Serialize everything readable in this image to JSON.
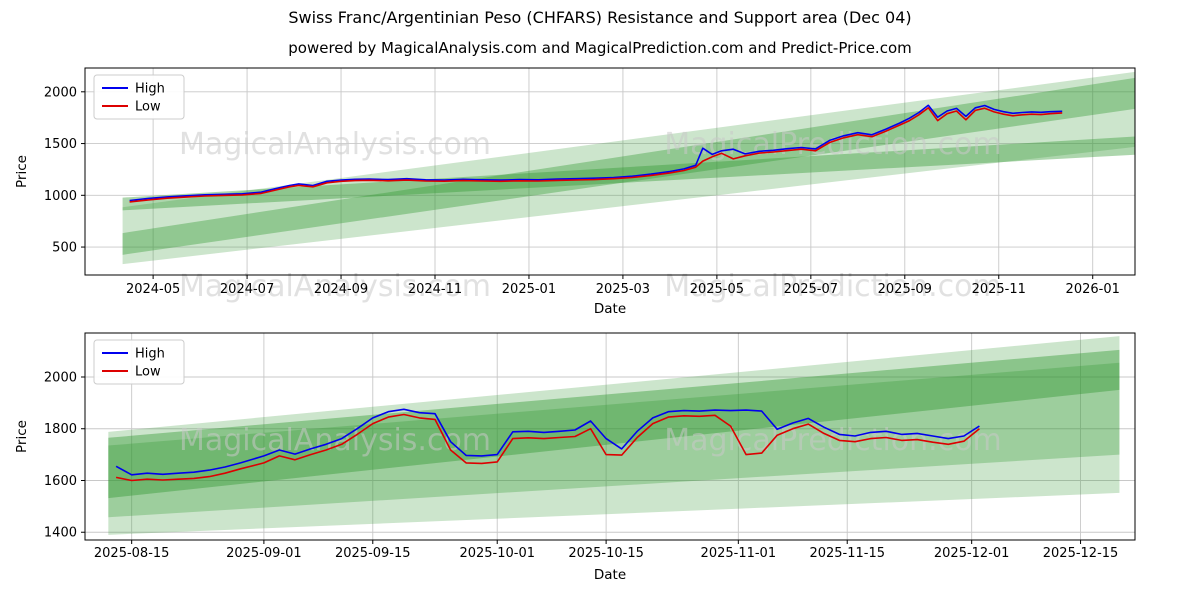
{
  "figure": {
    "title": "Swiss Franc/Argentinian Peso (CHFARS) Resistance and Support area (Dec 04)",
    "subtitle": "powered by MagicalAnalysis.com and MagicalPrediction.com and Predict-Price.com"
  },
  "watermarks": {
    "left": "MagicalAnalysis.com",
    "right": "MagicalPrediction.com"
  },
  "colors": {
    "high": "#0000ee",
    "low": "#dd0000",
    "band": "#339933",
    "grid": "#c8c8c8",
    "watermark": "#c9c9c9",
    "axis": "#000000"
  },
  "chart_data": [
    {
      "type": "line",
      "title": "",
      "xlabel": "Date",
      "ylabel": "Price",
      "xlim": [
        -0.45,
        21.9
      ],
      "ylim": [
        230,
        2230
      ],
      "yticks": [
        500,
        1000,
        1500,
        2000
      ],
      "xticks": {
        "values": [
          1,
          3,
          5,
          7,
          9,
          11,
          13,
          15,
          17,
          19,
          21
        ],
        "labels": [
          "2024-05",
          "2024-07",
          "2024-09",
          "2024-11",
          "2025-01",
          "2025-03",
          "2025-05",
          "2025-07",
          "2025-09",
          "2025-11",
          "2026-01"
        ]
      },
      "legend": {
        "position": "upper-left",
        "entries": [
          {
            "label": "High",
            "color": "#0000ee"
          },
          {
            "label": "Low",
            "color": "#dd0000"
          }
        ]
      },
      "bands": [
        {
          "x": [
            0.35,
            21.9
          ],
          "lower": [
            335,
            1468
          ],
          "upper": [
            885,
            2192
          ],
          "alpha": 0.25
        },
        {
          "x": [
            0.35,
            21.9
          ],
          "lower": [
            425,
            1835
          ],
          "upper": [
            635,
            2135
          ],
          "alpha": 0.38
        },
        {
          "x": [
            0.35,
            21.9
          ],
          "lower": [
            855,
            1392
          ],
          "upper": [
            978,
            1568
          ],
          "alpha": 0.4
        }
      ],
      "x": [
        0.5,
        0.9,
        1.3,
        1.7,
        2.1,
        2.5,
        2.9,
        3.3,
        3.6,
        3.9,
        4.1,
        4.4,
        4.7,
        5.0,
        5.3,
        5.6,
        6.0,
        6.4,
        6.8,
        7.2,
        7.6,
        8.0,
        8.4,
        8.8,
        9.2,
        9.6,
        10.0,
        10.4,
        10.8,
        11.2,
        11.6,
        12.0,
        12.3,
        12.55,
        12.7,
        12.9,
        13.1,
        13.35,
        13.6,
        13.9,
        14.2,
        14.5,
        14.8,
        15.1,
        15.4,
        15.7,
        16.0,
        16.3,
        16.6,
        16.9,
        17.1,
        17.3,
        17.5,
        17.7,
        17.9,
        18.1,
        18.3,
        18.5,
        18.7,
        18.9,
        19.1,
        19.3,
        19.5,
        19.7,
        19.9,
        20.1,
        20.35
      ],
      "series": [
        {
          "name": "High",
          "color": "#0000ee",
          "values": [
            950,
            970,
            985,
            995,
            1005,
            1010,
            1015,
            1030,
            1065,
            1095,
            1110,
            1095,
            1135,
            1148,
            1155,
            1158,
            1152,
            1160,
            1150,
            1148,
            1155,
            1150,
            1147,
            1152,
            1150,
            1157,
            1160,
            1165,
            1172,
            1185,
            1205,
            1230,
            1255,
            1290,
            1455,
            1395,
            1430,
            1445,
            1400,
            1425,
            1435,
            1450,
            1462,
            1448,
            1530,
            1575,
            1605,
            1585,
            1640,
            1700,
            1745,
            1800,
            1870,
            1755,
            1815,
            1840,
            1762,
            1845,
            1868,
            1830,
            1808,
            1792,
            1800,
            1806,
            1802,
            1808,
            1812
          ]
        },
        {
          "name": "Low",
          "color": "#dd0000",
          "values": [
            936,
            956,
            972,
            983,
            993,
            999,
            1004,
            1018,
            1050,
            1082,
            1096,
            1082,
            1121,
            1135,
            1142,
            1145,
            1140,
            1147,
            1138,
            1136,
            1142,
            1138,
            1135,
            1140,
            1138,
            1144,
            1148,
            1152,
            1160,
            1172,
            1192,
            1216,
            1240,
            1272,
            1330,
            1372,
            1406,
            1352,
            1382,
            1408,
            1418,
            1432,
            1445,
            1430,
            1510,
            1556,
            1586,
            1566,
            1620,
            1680,
            1722,
            1778,
            1845,
            1722,
            1788,
            1815,
            1730,
            1820,
            1842,
            1806,
            1784,
            1768,
            1778,
            1784,
            1780,
            1788,
            1796
          ]
        }
      ]
    },
    {
      "type": "line",
      "title": "",
      "xlabel": "Date",
      "ylabel": "Price",
      "xlim": [
        -2,
        133
      ],
      "ylim": [
        1370,
        2170
      ],
      "yticks": [
        1400,
        1600,
        1800,
        2000
      ],
      "xticks": {
        "values": [
          4,
          21,
          35,
          51,
          65,
          82,
          96,
          112,
          126
        ],
        "labels": [
          "2025-08-15",
          "2025-09-01",
          "2025-09-15",
          "2025-10-01",
          "2025-10-15",
          "2025-11-01",
          "2025-11-15",
          "2025-12-01",
          "2025-12-15"
        ]
      },
      "legend": {
        "position": "upper-left",
        "entries": [
          {
            "label": "High",
            "color": "#0000ee"
          },
          {
            "label": "Low",
            "color": "#dd0000"
          }
        ]
      },
      "bands": [
        {
          "x": [
            1,
            131
          ],
          "lower": [
            1390,
            1552
          ],
          "upper": [
            1788,
            2158
          ],
          "alpha": 0.25
        },
        {
          "x": [
            1,
            131
          ],
          "lower": [
            1532,
            1950
          ],
          "upper": [
            1765,
            2105
          ],
          "alpha": 0.42
        },
        {
          "x": [
            1,
            131
          ],
          "lower": [
            1458,
            1700
          ],
          "upper": [
            1735,
            2055
          ],
          "alpha": 0.3
        }
      ],
      "x": [
        2,
        4,
        6,
        8,
        10,
        12,
        14,
        16,
        18,
        21,
        23,
        25,
        27,
        29,
        31,
        33,
        35,
        37,
        39,
        41,
        43,
        45,
        47,
        49,
        51,
        53,
        55,
        57,
        59,
        61,
        63,
        65,
        67,
        69,
        71,
        73,
        75,
        77,
        79,
        81,
        83,
        85,
        87,
        89,
        91,
        93,
        95,
        97,
        99,
        101,
        103,
        105,
        107,
        109,
        111,
        113
      ],
      "series": [
        {
          "name": "High",
          "color": "#0000ee",
          "values": [
            1655,
            1622,
            1628,
            1624,
            1628,
            1632,
            1640,
            1652,
            1668,
            1695,
            1718,
            1702,
            1722,
            1740,
            1762,
            1800,
            1842,
            1866,
            1875,
            1862,
            1858,
            1750,
            1697,
            1695,
            1700,
            1788,
            1790,
            1786,
            1790,
            1795,
            1830,
            1762,
            1722,
            1790,
            1842,
            1866,
            1870,
            1868,
            1872,
            1870,
            1872,
            1868,
            1798,
            1822,
            1840,
            1806,
            1778,
            1772,
            1786,
            1790,
            1778,
            1782,
            1772,
            1762,
            1772,
            1810
          ]
        },
        {
          "name": "Low",
          "color": "#dd0000",
          "values": [
            1612,
            1600,
            1605,
            1602,
            1605,
            1608,
            1615,
            1628,
            1645,
            1668,
            1695,
            1680,
            1700,
            1718,
            1740,
            1778,
            1820,
            1845,
            1855,
            1842,
            1836,
            1718,
            1668,
            1666,
            1672,
            1762,
            1765,
            1762,
            1766,
            1770,
            1800,
            1700,
            1698,
            1766,
            1820,
            1845,
            1850,
            1848,
            1852,
            1810,
            1700,
            1706,
            1775,
            1800,
            1818,
            1782,
            1755,
            1750,
            1762,
            1766,
            1755,
            1758,
            1748,
            1740,
            1752,
            1800
          ]
        }
      ]
    }
  ]
}
